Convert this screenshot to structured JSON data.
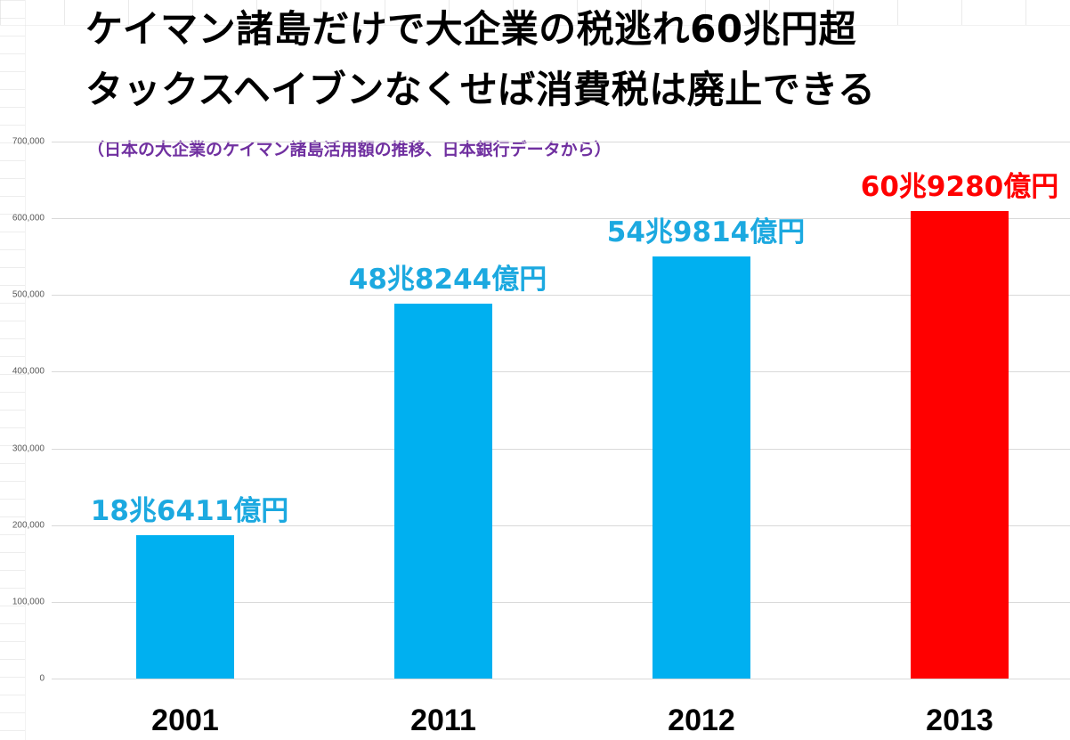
{
  "title_lines": [
    "ケイマン諸島だけで大企業の税逃れ60兆円超",
    "タックスヘイブンなくせば消費税は廃止できる"
  ],
  "subtitle": "（日本の大企業のケイマン諸島活用額の推移、日本銀行データから）",
  "colors": {
    "normal_bar": "#00b0f0",
    "highlight_bar": "#ff0000",
    "normal_label": "#1ca9e0",
    "highlight_label": "#ff0000"
  },
  "chart_data": {
    "type": "bar",
    "categories": [
      "2001",
      "2011",
      "2012",
      "2013"
    ],
    "values": [
      186411,
      488244,
      549814,
      609280
    ],
    "data_labels": [
      "18兆6411億円",
      "48兆8244億円",
      "54兆9814億円",
      "60兆9280億円"
    ],
    "highlight": [
      false,
      false,
      false,
      true
    ],
    "ylim": [
      0,
      700000
    ],
    "yticks": [
      "0",
      "100,000",
      "200,000",
      "300,000",
      "400,000",
      "500,000",
      "600,000",
      "700,000"
    ],
    "grid": true,
    "legend": "none"
  }
}
